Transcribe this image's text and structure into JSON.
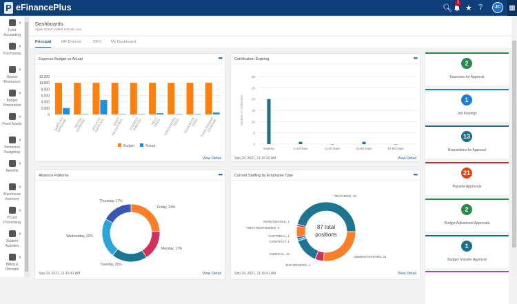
{
  "app": {
    "name": "eFinancePlus",
    "logo": "P",
    "notification_count": "1",
    "user_initials": "JC"
  },
  "icons": {
    "search": "search-icon",
    "bell": "bell-icon",
    "star": "star-icon",
    "help": "help-icon",
    "apps": "grid-icon"
  },
  "sidebar": {
    "items": [
      {
        "label": "Fund Accounting",
        "icon": "dollar-icon"
      },
      {
        "label": "Purchasing",
        "icon": "card-icon"
      },
      {
        "label": "Human Resources",
        "icon": "org-chart-icon"
      },
      {
        "label": "Budget Preparation",
        "icon": "document-icon"
      },
      {
        "label": "Fixed Assets",
        "icon": "desk-icon"
      },
      {
        "label": "Personnel Budgeting",
        "icon": "wallet-icon"
      },
      {
        "label": "Benefits",
        "icon": "umbrella-icon"
      },
      {
        "label": "Warehouse Inventory",
        "icon": "boxes-icon"
      },
      {
        "label": "PCard Processing",
        "icon": "pcard-icon"
      },
      {
        "label": "Student Activities",
        "icon": "student-icon"
      },
      {
        "label": "Billing & Receipts",
        "icon": "receipt-icon"
      }
    ]
  },
  "page": {
    "title": "Dashboards",
    "subtitle": "Apple Grove Unified Schools Live"
  },
  "tabs": [
    {
      "label": "Principal",
      "active": true
    },
    {
      "label": "HR Director"
    },
    {
      "label": "CFO"
    },
    {
      "label": "My Dashboard"
    }
  ],
  "cards": {
    "expense": {
      "title": "Expense Budget vs Actual",
      "view": "View Detail"
    },
    "cert": {
      "title": "Certification Expiring",
      "timestamp": "Sep 29, 2021, 11:15:40 AM",
      "view": "View Detail"
    },
    "absence": {
      "title": "Absence Patterns",
      "timestamp": "Sep 29, 2021, 11:15:41 AM",
      "view": "View Detail"
    },
    "staffing": {
      "title": "Current Staffing by Employee Type",
      "timestamp": "Sep 29, 2021, 11:15:41 AM",
      "view": "View Detail",
      "center_line1": "87 total",
      "center_line2": "positions"
    }
  },
  "kpis": [
    {
      "value": "2",
      "label": "Expenses for Approval",
      "color": "#2a8a4a"
    },
    {
      "value": "1",
      "label": "Job Postings",
      "color": "#1a7fd0"
    },
    {
      "value": "13",
      "label": "Requisitions for Approval",
      "color": "#1d6f8a"
    },
    {
      "value": "21",
      "label": "Payable Approvals",
      "color": "#d84a14",
      "bar": "#d0262e"
    },
    {
      "value": "2",
      "label": "Budget Adjustment Approvals",
      "color": "#2a8a4a"
    },
    {
      "value": "1",
      "label": "Budget Transfer Approval",
      "color": "#1d6f8a"
    }
  ],
  "chart_data": [
    {
      "type": "bar",
      "categories": [
        "SUPPLIES EXPENSE",
        "RENTAL EXPENSE",
        "ATHLETIC SUPPLIES",
        "STAFF INCENTIVES",
        "STUDENT PHOTOS",
        "FIELD TRIPS",
        "GRADUATION FEES",
        "YEAR BOOK FEES",
        "FUND RAISING EXPENSE"
      ],
      "series": [
        {
          "name": "Budget",
          "color": "#ff7f0e",
          "values": [
            10000,
            10000,
            10000,
            10000,
            10000,
            10000,
            10000,
            10000,
            10000
          ]
        },
        {
          "name": "Actual",
          "color": "#1f8fe0",
          "values": [
            2000,
            100,
            4600,
            100,
            100,
            400,
            100,
            100,
            600
          ]
        }
      ],
      "ylim": [
        0,
        12000
      ],
      "yticks": [
        "0",
        "2,000",
        "4,000",
        "6,000",
        "8,000",
        "10,000",
        "12,000"
      ],
      "legend": "bottom",
      "grid": true
    },
    {
      "type": "bar",
      "categories": [
        "Expired",
        "1-10 Days",
        "11-30 Days",
        "31-60 Days",
        "61-90 Days"
      ],
      "values": [
        20,
        1,
        0,
        1,
        0
      ],
      "ylabel": "Number of Certificates",
      "ylim": [
        0,
        30
      ],
      "yticks": [
        "0",
        "5",
        "10",
        "15",
        "20",
        "25",
        "30"
      ],
      "color": "#1d6f8a",
      "grid": true
    },
    {
      "type": "pie",
      "categories": [
        "Friday",
        "Monday",
        "Tuesday",
        "Wednesday",
        "Thursday"
      ],
      "values": [
        24,
        17,
        20,
        22,
        17
      ],
      "labels": [
        "Friday, 24%",
        "Monday, 17%",
        "Tuesday, 20%",
        "Wednesday, 22%",
        "Thursday, 17%"
      ],
      "colors": [
        "#fb7f28",
        "#d2305a",
        "#1d7590",
        "#2aa5d8",
        "#3a56b5"
      ]
    },
    {
      "type": "pie",
      "categories": [
        "TEACHERS",
        "ADMINISTRATORS",
        "BUS DRIVERS",
        "CLERICAL",
        "CONTRACT",
        "CUSTODIAL",
        "FIRST RESPONDER",
        "MAINTENANCE"
      ],
      "values": [
        40,
        23,
        4,
        12,
        1,
        1,
        5,
        1
      ],
      "labels": [
        "TEACHERS, 40",
        "ADMINISTRATORS, 23",
        "BUS DRIVERS, 4",
        "CLERICAL, 12",
        "CONTRACT, 1",
        "CUSTODIAL, 1",
        "FIRST RESPONDER, 5",
        "MAINTENANCE, 1"
      ],
      "colors": [
        "#1d7590",
        "#fb7f28",
        "#d2305a",
        "#1d7590",
        "#2aa5d8",
        "#3a56b5",
        "#fb7f28",
        "#d2305a"
      ]
    }
  ]
}
